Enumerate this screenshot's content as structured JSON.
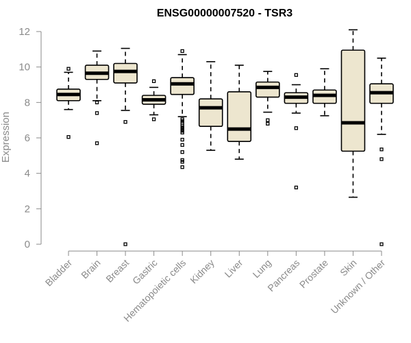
{
  "chart_data": {
    "type": "boxplot",
    "title": "ENSG00000007520 - TSR3",
    "xlabel": "",
    "ylabel": "Expression",
    "ylim": [
      0,
      12
    ],
    "yticks": [
      0,
      2,
      4,
      6,
      8,
      10,
      12
    ],
    "grid": false,
    "box_color": "#ede6cf",
    "series": [
      {
        "name": "Bladder",
        "whisker_low": 7.6,
        "q1": 8.1,
        "median": 8.45,
        "q3": 8.75,
        "whisker_high": 9.7,
        "outliers": [
          6.05,
          9.9
        ]
      },
      {
        "name": "Brain",
        "whisker_low": 8.1,
        "q1": 9.3,
        "median": 9.65,
        "q3": 10.1,
        "whisker_high": 10.9,
        "outliers": [
          7.4,
          5.7,
          8.0
        ]
      },
      {
        "name": "Breast",
        "whisker_low": 7.55,
        "q1": 9.1,
        "median": 9.75,
        "q3": 10.2,
        "whisker_high": 11.05,
        "outliers": [
          6.9,
          0.0
        ]
      },
      {
        "name": "Gastric",
        "whisker_low": 7.3,
        "q1": 7.9,
        "median": 8.15,
        "q3": 8.4,
        "whisker_high": 8.85,
        "outliers": [
          9.2,
          7.05
        ]
      },
      {
        "name": "Hematopoietic cells",
        "whisker_low": 7.2,
        "q1": 8.45,
        "median": 9.05,
        "q3": 9.4,
        "whisker_high": 10.7,
        "outliers": [
          10.9,
          7.05,
          6.95,
          6.85,
          6.7,
          6.6,
          6.5,
          6.4,
          6.3,
          5.9,
          5.6,
          5.2,
          4.75,
          4.65,
          4.35
        ]
      },
      {
        "name": "Kidney",
        "whisker_low": 5.3,
        "q1": 6.65,
        "median": 7.7,
        "q3": 8.2,
        "whisker_high": 10.3,
        "outliers": []
      },
      {
        "name": "Liver",
        "whisker_low": 4.8,
        "q1": 5.8,
        "median": 6.5,
        "q3": 8.6,
        "whisker_high": 10.1,
        "outliers": []
      },
      {
        "name": "Lung",
        "whisker_low": 7.45,
        "q1": 8.3,
        "median": 8.85,
        "q3": 9.15,
        "whisker_high": 9.75,
        "outliers": [
          7.0,
          6.8
        ]
      },
      {
        "name": "Pancreas",
        "whisker_low": 7.4,
        "q1": 7.95,
        "median": 8.3,
        "q3": 8.55,
        "whisker_high": 9.0,
        "outliers": [
          9.55,
          6.55,
          3.2
        ]
      },
      {
        "name": "Prostate",
        "whisker_low": 7.25,
        "q1": 7.95,
        "median": 8.4,
        "q3": 8.7,
        "whisker_high": 9.9,
        "outliers": []
      },
      {
        "name": "Skin",
        "whisker_low": 2.65,
        "q1": 5.25,
        "median": 6.85,
        "q3": 10.95,
        "whisker_high": 12.1,
        "outliers": []
      },
      {
        "name": "Unknown / Other",
        "whisker_low": 6.2,
        "q1": 7.95,
        "median": 8.55,
        "q3": 9.05,
        "whisker_high": 10.5,
        "outliers": [
          5.35,
          4.8,
          0.0
        ]
      }
    ]
  }
}
